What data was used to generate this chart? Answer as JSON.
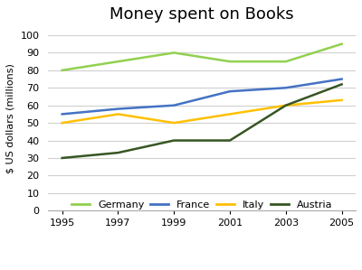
{
  "title": "Money spent on Books",
  "ylabel": "$ US dollars (millions)",
  "years": [
    1995,
    1997,
    1999,
    2001,
    2003,
    2005
  ],
  "series": {
    "Germany": {
      "values": [
        80,
        85,
        90,
        85,
        85,
        95
      ],
      "color": "#92d050"
    },
    "France": {
      "values": [
        55,
        58,
        60,
        68,
        70,
        75
      ],
      "color": "#4472c4"
    },
    "Italy": {
      "values": [
        50,
        55,
        50,
        55,
        60,
        63
      ],
      "color": "#ffc000"
    },
    "Austria": {
      "values": [
        30,
        33,
        40,
        40,
        60,
        72
      ],
      "color": "#375623"
    }
  },
  "ylim": [
    0,
    105
  ],
  "yticks": [
    0,
    10,
    20,
    30,
    40,
    50,
    60,
    70,
    80,
    90,
    100
  ],
  "xticks": [
    1995,
    1997,
    1999,
    2001,
    2003,
    2005
  ],
  "background_color": "#ffffff",
  "grid_color": "#d0d0d0",
  "title_fontsize": 13,
  "legend_fontsize": 8,
  "tick_fontsize": 8,
  "ylabel_fontsize": 8
}
